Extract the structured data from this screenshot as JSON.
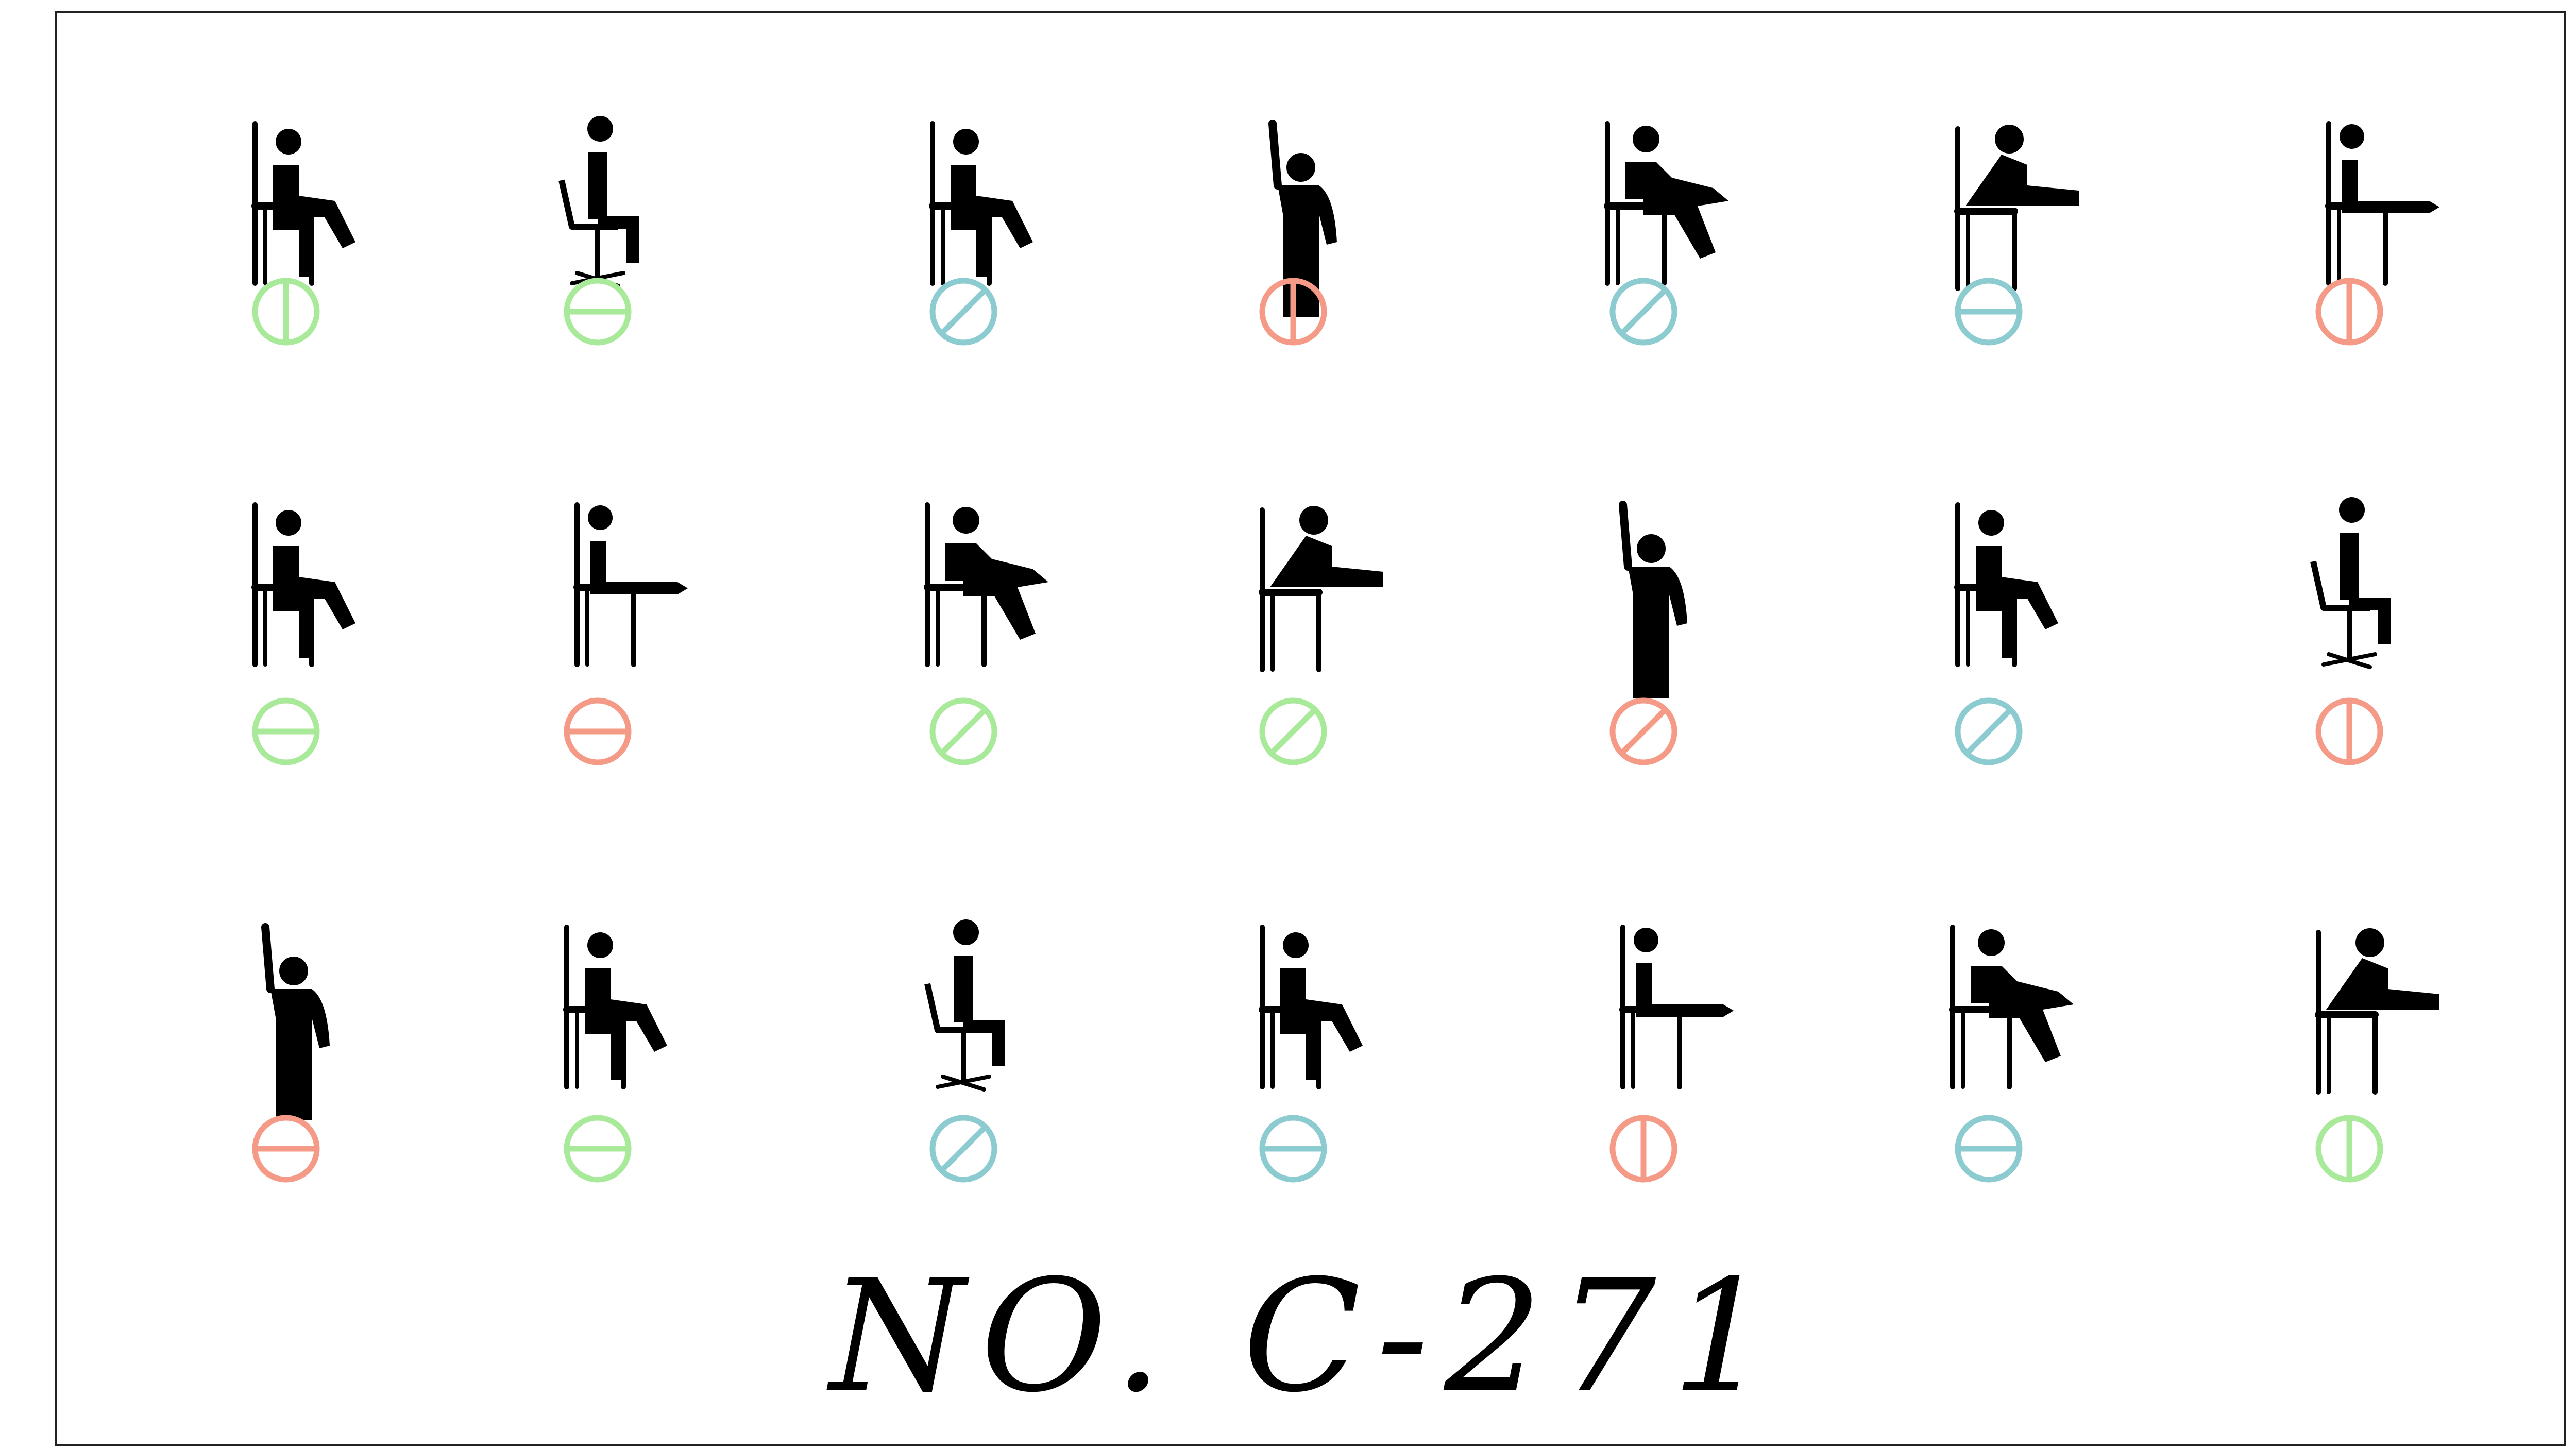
{
  "card": {
    "number": "NO. C-271"
  },
  "colors": {
    "green": "#a8e99a",
    "teal": "#8ccbd0",
    "red": "#f49a86",
    "figure": "#000000"
  },
  "rows": [
    [
      {
        "pose": "sit-leg-out",
        "icon": "person-sitting-icon",
        "mark": "vertical",
        "color": "green"
      },
      {
        "pose": "office-chair",
        "icon": "person-office-chair-icon",
        "mark": "horizontal",
        "color": "green"
      },
      {
        "pose": "sit-leg-out",
        "icon": "person-sitting-icon",
        "mark": "diagonal",
        "color": "teal"
      },
      {
        "pose": "stand-arm-up",
        "icon": "person-raised-arm-icon",
        "mark": "vertical",
        "color": "red"
      },
      {
        "pose": "sit-knee-hug",
        "icon": "person-knee-raise-icon",
        "mark": "diagonal",
        "color": "teal"
      },
      {
        "pose": "sit-reach",
        "icon": "person-toe-reach-icon",
        "mark": "horizontal",
        "color": "teal"
      },
      {
        "pose": "sit-leg-straight",
        "icon": "person-leg-extension-icon",
        "mark": "vertical",
        "color": "red"
      }
    ],
    [
      {
        "pose": "sit-leg-out",
        "icon": "person-sitting-icon",
        "mark": "horizontal",
        "color": "green"
      },
      {
        "pose": "sit-leg-straight",
        "icon": "person-leg-extension-icon",
        "mark": "horizontal",
        "color": "red"
      },
      {
        "pose": "sit-knee-hug",
        "icon": "person-knee-raise-icon",
        "mark": "diagonal",
        "color": "green"
      },
      {
        "pose": "sit-reach",
        "icon": "person-toe-reach-icon",
        "mark": "diagonal",
        "color": "green"
      },
      {
        "pose": "stand-arm-up",
        "icon": "person-raised-arm-icon",
        "mark": "diagonal",
        "color": "red"
      },
      {
        "pose": "sit-leg-out",
        "icon": "person-sitting-icon",
        "mark": "diagonal",
        "color": "teal"
      },
      {
        "pose": "office-chair",
        "icon": "person-office-chair-icon",
        "mark": "vertical",
        "color": "red"
      }
    ],
    [
      {
        "pose": "stand-arm-up",
        "icon": "person-raised-arm-icon",
        "mark": "horizontal",
        "color": "red"
      },
      {
        "pose": "sit-leg-out",
        "icon": "person-sitting-icon",
        "mark": "horizontal",
        "color": "green"
      },
      {
        "pose": "office-chair",
        "icon": "person-office-chair-icon",
        "mark": "diagonal",
        "color": "teal"
      },
      {
        "pose": "sit-leg-out",
        "icon": "person-sitting-icon",
        "mark": "horizontal",
        "color": "teal"
      },
      {
        "pose": "sit-leg-straight",
        "icon": "person-leg-extension-icon",
        "mark": "vertical",
        "color": "red"
      },
      {
        "pose": "sit-knee-hug",
        "icon": "person-knee-raise-icon",
        "mark": "horizontal",
        "color": "teal"
      },
      {
        "pose": "sit-reach",
        "icon": "person-toe-reach-icon",
        "mark": "vertical",
        "color": "green"
      }
    ]
  ]
}
